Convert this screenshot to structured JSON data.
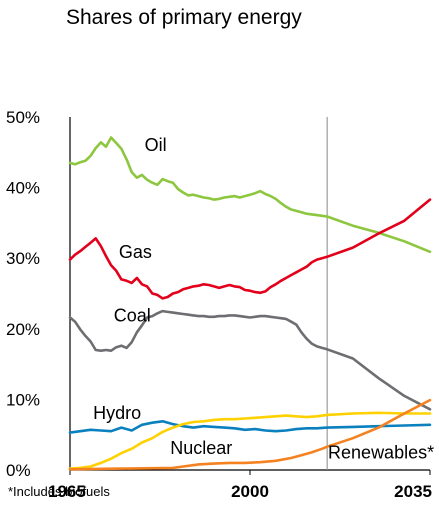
{
  "chart_data": {
    "type": "line",
    "title": "Shares of primary energy",
    "footnote": "*Includes biofuels",
    "xlabel": "",
    "ylabel": "",
    "xlim": [
      1965,
      2035
    ],
    "ylim": [
      0,
      50
    ],
    "x_ticks": [
      "1965",
      "2000",
      "2035"
    ],
    "y_ticks": [
      "0%",
      "10%",
      "20%",
      "30%",
      "40%",
      "50%"
    ],
    "y_tick_values": [
      0,
      10,
      20,
      30,
      40,
      50
    ],
    "projection_start_year": 2015,
    "series": [
      {
        "name": "Oil",
        "color": "#8dc63f",
        "x": [
          1965,
          1966,
          1967,
          1968,
          1969,
          1970,
          1971,
          1972,
          1973,
          1974,
          1975,
          1976,
          1977,
          1978,
          1979,
          1980,
          1981,
          1982,
          1983,
          1984,
          1985,
          1986,
          1987,
          1988,
          1989,
          1990,
          1991,
          1992,
          1993,
          1994,
          1995,
          1996,
          1997,
          1998,
          1999,
          2000,
          2001,
          2002,
          2003,
          2004,
          2005,
          2006,
          2007,
          2008,
          2009,
          2010,
          2011,
          2012,
          2013,
          2014,
          2015,
          2020,
          2025,
          2030,
          2035
        ],
        "y": [
          43.5,
          43.3,
          43.6,
          43.8,
          44.5,
          45.6,
          46.4,
          45.8,
          47.1,
          46.3,
          45.5,
          44.0,
          42.2,
          41.4,
          41.8,
          41.1,
          40.7,
          40.4,
          41.2,
          40.9,
          40.7,
          39.8,
          39.3,
          38.9,
          39.0,
          38.8,
          38.6,
          38.5,
          38.3,
          38.4,
          38.6,
          38.7,
          38.8,
          38.6,
          38.8,
          39.0,
          39.2,
          39.5,
          39.1,
          38.8,
          38.4,
          37.8,
          37.3,
          36.9,
          36.7,
          36.5,
          36.3,
          36.2,
          36.1,
          36.0,
          35.9,
          34.6,
          33.6,
          32.4,
          30.9
        ]
      },
      {
        "name": "Gas",
        "color": "#e2001a",
        "x": [
          1965,
          1966,
          1967,
          1968,
          1969,
          1970,
          1971,
          1972,
          1973,
          1974,
          1975,
          1976,
          1977,
          1978,
          1979,
          1980,
          1981,
          1982,
          1983,
          1984,
          1985,
          1986,
          1987,
          1988,
          1989,
          1990,
          1991,
          1992,
          1993,
          1994,
          1995,
          1996,
          1997,
          1998,
          1999,
          2000,
          2001,
          2002,
          2003,
          2004,
          2005,
          2006,
          2007,
          2008,
          2009,
          2010,
          2011,
          2012,
          2013,
          2014,
          2015,
          2020,
          2025,
          2030,
          2035
        ],
        "y": [
          29.8,
          30.5,
          31.0,
          31.6,
          32.2,
          32.8,
          31.7,
          30.3,
          29.0,
          28.2,
          27.0,
          26.8,
          26.5,
          27.2,
          26.3,
          26.0,
          25.0,
          24.8,
          24.3,
          24.5,
          25.0,
          25.2,
          25.6,
          25.8,
          26.0,
          26.1,
          26.3,
          26.2,
          26.0,
          25.8,
          26.0,
          26.2,
          26.0,
          25.9,
          25.5,
          25.4,
          25.2,
          25.1,
          25.3,
          25.9,
          26.3,
          26.8,
          27.2,
          27.6,
          28.0,
          28.4,
          28.8,
          29.4,
          29.8,
          30.0,
          30.2,
          31.5,
          33.5,
          35.3,
          38.3
        ]
      },
      {
        "name": "Coal",
        "color": "#6d6e71",
        "x": [
          1965,
          1966,
          1967,
          1968,
          1969,
          1970,
          1971,
          1972,
          1973,
          1974,
          1975,
          1976,
          1977,
          1978,
          1979,
          1980,
          1981,
          1982,
          1983,
          1984,
          1985,
          1986,
          1987,
          1988,
          1989,
          1990,
          1991,
          1992,
          1993,
          1994,
          1995,
          1996,
          1997,
          1998,
          1999,
          2000,
          2001,
          2002,
          2003,
          2004,
          2005,
          2006,
          2007,
          2008,
          2009,
          2010,
          2011,
          2012,
          2013,
          2014,
          2015,
          2020,
          2025,
          2030,
          2035
        ],
        "y": [
          21.6,
          21.0,
          19.9,
          19.0,
          18.2,
          17.0,
          16.9,
          17.0,
          16.9,
          17.4,
          17.6,
          17.3,
          18.1,
          19.5,
          20.5,
          21.6,
          21.8,
          22.2,
          22.5,
          22.4,
          22.3,
          22.2,
          22.1,
          22.0,
          21.9,
          21.8,
          21.8,
          21.7,
          21.7,
          21.8,
          21.8,
          21.9,
          21.9,
          21.8,
          21.7,
          21.6,
          21.7,
          21.8,
          21.8,
          21.7,
          21.6,
          21.5,
          21.4,
          21.0,
          20.6,
          19.5,
          18.6,
          17.9,
          17.5,
          17.3,
          17.1,
          15.8,
          13.0,
          10.5,
          8.6
        ]
      },
      {
        "name": "Hydro",
        "color": "#0a80bf",
        "x": [
          1965,
          1967,
          1969,
          1971,
          1973,
          1975,
          1977,
          1979,
          1981,
          1983,
          1985,
          1987,
          1989,
          1991,
          1993,
          1995,
          1997,
          1999,
          2001,
          2003,
          2005,
          2007,
          2009,
          2011,
          2013,
          2015,
          2020,
          2025,
          2030,
          2035
        ],
        "y": [
          5.3,
          5.5,
          5.7,
          5.6,
          5.5,
          6.0,
          5.6,
          6.4,
          6.7,
          6.9,
          6.5,
          6.2,
          6.0,
          6.2,
          6.1,
          6.0,
          5.9,
          5.7,
          5.8,
          5.6,
          5.5,
          5.6,
          5.8,
          5.9,
          5.9,
          6.0,
          6.1,
          6.2,
          6.3,
          6.4
        ]
      },
      {
        "name": "Nuclear",
        "color": "#ffd100",
        "x": [
          1965,
          1967,
          1969,
          1971,
          1973,
          1975,
          1977,
          1979,
          1981,
          1983,
          1985,
          1987,
          1989,
          1991,
          1993,
          1995,
          1997,
          1999,
          2001,
          2003,
          2005,
          2007,
          2009,
          2011,
          2013,
          2015,
          2020,
          2025,
          2030,
          2035
        ],
        "y": [
          0.2,
          0.3,
          0.5,
          1.0,
          1.6,
          2.4,
          3.0,
          3.9,
          4.5,
          5.4,
          6.0,
          6.5,
          6.8,
          6.9,
          7.1,
          7.2,
          7.2,
          7.3,
          7.4,
          7.5,
          7.6,
          7.7,
          7.6,
          7.5,
          7.6,
          7.8,
          8.0,
          8.1,
          8.0,
          8.0
        ]
      },
      {
        "name": "Renewables*",
        "color": "#f58220",
        "x": [
          1965,
          1975,
          1985,
          1987,
          1990,
          1993,
          1996,
          1999,
          2002,
          2005,
          2008,
          2010,
          2012,
          2014,
          2015,
          2020,
          2025,
          2030,
          2035
        ],
        "y": [
          0.1,
          0.2,
          0.3,
          0.5,
          0.8,
          0.9,
          1.0,
          1.0,
          1.1,
          1.3,
          1.7,
          2.1,
          2.5,
          3.0,
          3.3,
          4.5,
          6.0,
          8.0,
          9.9
        ]
      }
    ]
  }
}
